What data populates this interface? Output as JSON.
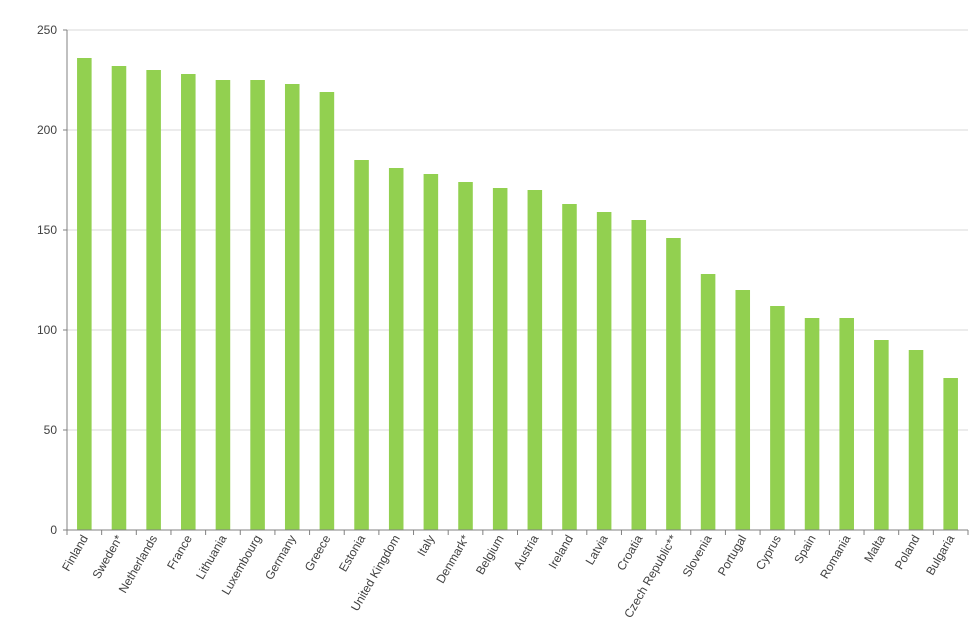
{
  "chart_data": {
    "type": "bar",
    "categories": [
      "Finland",
      "Sweden*",
      "Netherlands",
      "France",
      "Lithuania",
      "Luxembourg",
      "Germany",
      "Greece",
      "Estonia",
      "United Kingdom",
      "Italy",
      "Denmark*",
      "Belgium",
      "Austria",
      "Ireland",
      "Latvia",
      "Croatia",
      "Czech Republic**",
      "Slovenia",
      "Portugal",
      "Cyprus",
      "Spain",
      "Romania",
      "Malta",
      "Poland",
      "Bulgaria"
    ],
    "values": [
      236,
      232,
      230,
      228,
      225,
      225,
      223,
      219,
      185,
      181,
      178,
      174,
      171,
      170,
      163,
      159,
      155,
      146,
      128,
      120,
      112,
      106,
      106,
      95,
      90,
      76
    ],
    "ylim": [
      0,
      250
    ],
    "yticks": [
      0,
      50,
      100,
      150,
      200,
      250
    ],
    "grid": true,
    "bar_color": "#92d050",
    "grid_color": "#d9d9d9",
    "title": "",
    "xlabel": "",
    "ylabel": ""
  }
}
